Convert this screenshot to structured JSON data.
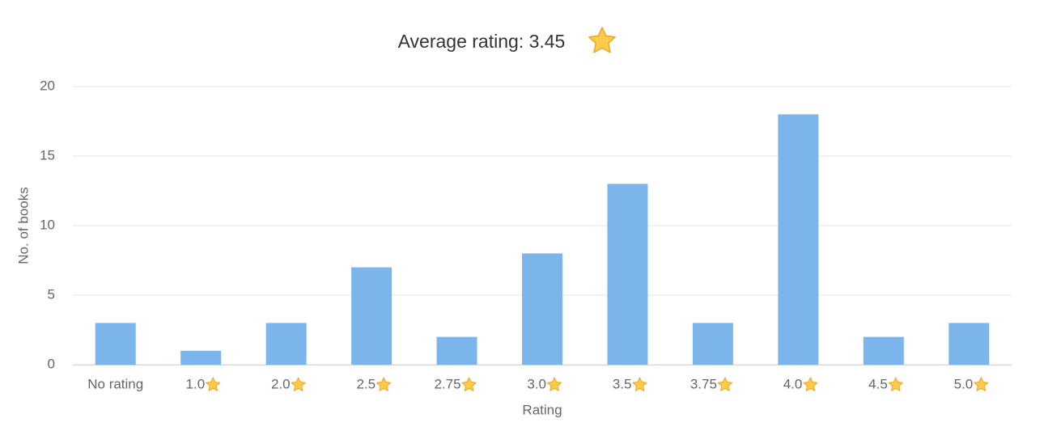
{
  "chart_data": {
    "type": "bar",
    "title": "Average rating: 3.45",
    "x_label": "Rating",
    "y_label": "No. of books",
    "categories": [
      "No rating",
      "1.0",
      "2.0",
      "2.5",
      "2.75",
      "3.0",
      "3.5",
      "3.75",
      "4.0",
      "4.5",
      "5.0"
    ],
    "values": [
      3,
      1,
      3,
      7,
      2,
      8,
      13,
      3,
      18,
      2,
      3
    ],
    "color": "#7cb5ec",
    "ylim": [
      0,
      20
    ],
    "yticks": [
      0,
      5,
      10,
      15,
      20
    ],
    "grid": true
  }
}
